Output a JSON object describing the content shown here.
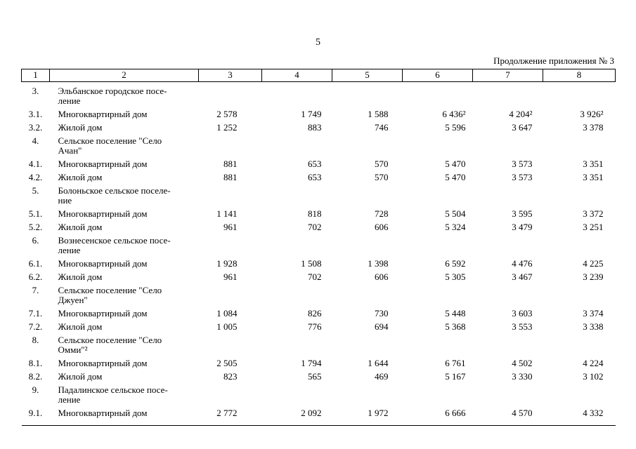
{
  "page": {
    "number": "5",
    "continuation": "Продолжение приложения № 3"
  },
  "table": {
    "columns": [
      "1",
      "2",
      "3",
      "4",
      "5",
      "6",
      "7",
      "8"
    ],
    "rows": [
      {
        "num": "3.",
        "name": "Эльбанское городское посе-\nление",
        "values": []
      },
      {
        "num": "3.1.",
        "name": "Многоквартирный дом",
        "values": [
          "2 578",
          "1 749",
          "1 588",
          "6 436²",
          "4 204²",
          "3 926²"
        ]
      },
      {
        "num": "3.2.",
        "name": "Жилой дом",
        "values": [
          "1 252",
          "883",
          "746",
          "5 596",
          "3 647",
          "3 378"
        ]
      },
      {
        "num": "4.",
        "name": "Сельское поселение \"Село\nАчан\"",
        "values": []
      },
      {
        "num": "4.1.",
        "name": "Многоквартирный дом",
        "values": [
          "881",
          "653",
          "570",
          "5 470",
          "3 573",
          "3 351"
        ]
      },
      {
        "num": "4.2.",
        "name": "Жилой дом",
        "values": [
          "881",
          "653",
          "570",
          "5 470",
          "3 573",
          "3 351"
        ]
      },
      {
        "num": "5.",
        "name": "Болоньское сельское поселе-\nние",
        "values": []
      },
      {
        "num": "5.1.",
        "name": "Многоквартирный дом",
        "values": [
          "1 141",
          "818",
          "728",
          "5 504",
          "3 595",
          "3 372"
        ]
      },
      {
        "num": "5.2.",
        "name": "Жилой дом",
        "values": [
          "961",
          "702",
          "606",
          "5 324",
          "3 479",
          "3 251"
        ]
      },
      {
        "num": "6.",
        "name": "Вознесенское сельское посе-\nление",
        "values": []
      },
      {
        "num": "6.1.",
        "name": "Многоквартирный дом",
        "values": [
          "1 928",
          "1 508",
          "1 398",
          "6 592",
          "4 476",
          "4 225"
        ]
      },
      {
        "num": "6.2.",
        "name": "Жилой дом",
        "values": [
          "961",
          "702",
          "606",
          "5 305",
          "3 467",
          "3 239"
        ]
      },
      {
        "num": "7.",
        "name": "Сельское поселение \"Село\nДжуен\"",
        "values": []
      },
      {
        "num": "7.1.",
        "name": "Многоквартирный дом",
        "values": [
          "1 084",
          "826",
          "730",
          "5 448",
          "3 603",
          "3 374"
        ]
      },
      {
        "num": "7.2.",
        "name": "Жилой дом",
        "values": [
          "1 005",
          "776",
          "694",
          "5 368",
          "3 553",
          "3 338"
        ]
      },
      {
        "num": "8.",
        "name": "Сельское поселение \"Село\nОмми\"²",
        "values": []
      },
      {
        "num": "8.1.",
        "name": "Многоквартирный дом",
        "values": [
          "2 505",
          "1 794",
          "1 644",
          "6 761",
          "4 502",
          "4 224"
        ]
      },
      {
        "num": "8.2.",
        "name": "Жилой дом",
        "values": [
          "823",
          "565",
          "469",
          "5 167",
          "3 330",
          "3 102"
        ]
      },
      {
        "num": "9.",
        "name": "Падалинское сельское посе-\nление",
        "values": []
      },
      {
        "num": "9.1.",
        "name": "Многоквартирный дом",
        "values": [
          "2 772",
          "2 092",
          "1 972",
          "6 666",
          "4 570",
          "4 332"
        ]
      }
    ]
  }
}
